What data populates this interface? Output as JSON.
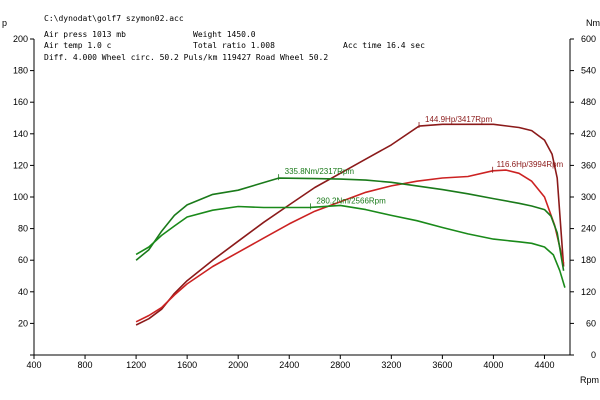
{
  "header": {
    "file": "C:\\dynodat\\golf7 szymon02.acc",
    "air_press": "Air press 1013 mb",
    "weight": "Weight   1450.0",
    "air_temp": "Air temp  1.0 c",
    "total_ratio": "Total ratio 1.008",
    "acc_time": "Acc time  16.4 sec",
    "diff_line": "Diff.    4.000  Wheel circ.  50.2  Puls/km  119427  Road Wheel  50.2"
  },
  "colors": {
    "power_curve": "#8b1a1a",
    "torque_curve": "#1a7a1a",
    "wheel_power": "#cc2222",
    "wheel_torque": "#1a8a1a",
    "power_label": "#8b1a1a",
    "torque_label": "#1a7a1a"
  },
  "chart_data": {
    "type": "line",
    "title": "",
    "xlabel": "",
    "ylabel": "",
    "x_unit_label": "Rpm",
    "left_unit_label": "p",
    "right_unit_label": "Nm",
    "xlim": [
      400,
      4600
    ],
    "x_ticks": [
      400,
      800,
      1200,
      1600,
      2000,
      2400,
      2800,
      3200,
      3600,
      4000,
      4400
    ],
    "left_ylim": [
      0,
      200
    ],
    "left_ticks": [
      0,
      20,
      40,
      60,
      80,
      100,
      120,
      140,
      160,
      180,
      200
    ],
    "left_tick_labels": [
      "",
      "20",
      "40",
      "60",
      "80",
      "100",
      "120",
      "140",
      "160",
      "180",
      "200"
    ],
    "right_ylim": [
      0,
      600
    ],
    "right_ticks": [
      0,
      60,
      120,
      180,
      240,
      300,
      360,
      420,
      480,
      540,
      600
    ],
    "right_tick_labels": [
      "0",
      "60",
      "120",
      "180",
      "240",
      "300",
      "360",
      "420",
      "480",
      "540",
      "600"
    ],
    "grid": false,
    "series": [
      {
        "axis": "left",
        "color_key": "power_curve",
        "points": [
          [
            1200,
            19
          ],
          [
            1300,
            23
          ],
          [
            1400,
            29
          ],
          [
            1500,
            39
          ],
          [
            1600,
            47
          ],
          [
            1800,
            60
          ],
          [
            2000,
            72
          ],
          [
            2200,
            84
          ],
          [
            2400,
            95
          ],
          [
            2600,
            106
          ],
          [
            2800,
            115
          ],
          [
            3000,
            124
          ],
          [
            3200,
            133
          ],
          [
            3417,
            144.9
          ],
          [
            3600,
            146
          ],
          [
            3800,
            146
          ],
          [
            4000,
            146
          ],
          [
            4200,
            144
          ],
          [
            4300,
            142
          ],
          [
            4400,
            136
          ],
          [
            4460,
            127
          ],
          [
            4500,
            112
          ],
          [
            4550,
            56
          ]
        ]
      },
      {
        "axis": "left",
        "color_key": "wheel_power",
        "points": [
          [
            1200,
            21
          ],
          [
            1300,
            25
          ],
          [
            1400,
            30
          ],
          [
            1500,
            38
          ],
          [
            1600,
            45
          ],
          [
            1800,
            56
          ],
          [
            2000,
            65
          ],
          [
            2200,
            74
          ],
          [
            2400,
            83
          ],
          [
            2600,
            91
          ],
          [
            2800,
            97
          ],
          [
            3000,
            103
          ],
          [
            3200,
            107
          ],
          [
            3400,
            110
          ],
          [
            3600,
            112
          ],
          [
            3800,
            113
          ],
          [
            3994,
            116.6
          ],
          [
            4100,
            117
          ],
          [
            4200,
            115
          ],
          [
            4300,
            110
          ],
          [
            4400,
            100
          ],
          [
            4480,
            82
          ],
          [
            4550,
            58
          ]
        ]
      },
      {
        "axis": "right",
        "color_key": "torque_curve",
        "points": [
          [
            1200,
            180
          ],
          [
            1300,
            200
          ],
          [
            1400,
            235
          ],
          [
            1500,
            265
          ],
          [
            1600,
            285
          ],
          [
            1800,
            305
          ],
          [
            2000,
            313
          ],
          [
            2317,
            335.8
          ],
          [
            2600,
            335
          ],
          [
            2800,
            334
          ],
          [
            3000,
            332
          ],
          [
            3200,
            328
          ],
          [
            3400,
            321
          ],
          [
            3600,
            314
          ],
          [
            3800,
            306
          ],
          [
            4000,
            297
          ],
          [
            4200,
            288
          ],
          [
            4300,
            283
          ],
          [
            4400,
            276
          ],
          [
            4450,
            264
          ],
          [
            4500,
            232
          ],
          [
            4550,
            160
          ]
        ]
      },
      {
        "axis": "right",
        "color_key": "wheel_torque",
        "points": [
          [
            1200,
            191
          ],
          [
            1300,
            205
          ],
          [
            1400,
            227
          ],
          [
            1500,
            245
          ],
          [
            1600,
            262
          ],
          [
            1800,
            275
          ],
          [
            2000,
            282
          ],
          [
            2200,
            280
          ],
          [
            2400,
            280
          ],
          [
            2566,
            280.2
          ],
          [
            2800,
            284
          ],
          [
            3000,
            276
          ],
          [
            3200,
            265
          ],
          [
            3400,
            255
          ],
          [
            3600,
            242
          ],
          [
            3800,
            230
          ],
          [
            4000,
            220
          ],
          [
            4200,
            215
          ],
          [
            4300,
            212
          ],
          [
            4400,
            205
          ],
          [
            4470,
            190
          ],
          [
            4520,
            160
          ],
          [
            4560,
            128
          ]
        ]
      }
    ],
    "annotations": [
      {
        "text": "144.9Hp/3417Rpm",
        "x": 3417,
        "value": 144.9,
        "axis": "left",
        "color_key": "power_label"
      },
      {
        "text": "116.6Hp/3994Rpm",
        "x": 3994,
        "value": 116.6,
        "axis": "left",
        "color_key": "power_label"
      },
      {
        "text": "335.8Nm/2317Rpm",
        "x": 2317,
        "value": 335.8,
        "axis": "right",
        "color_key": "torque_label"
      },
      {
        "text": "280.2Nm/2566Rpm",
        "x": 2566,
        "value": 280.2,
        "axis": "right",
        "color_key": "torque_label"
      }
    ]
  }
}
